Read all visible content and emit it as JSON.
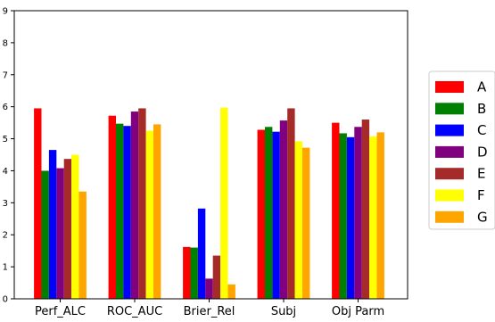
{
  "chart_data": {
    "type": "bar",
    "categories": [
      "Perf_ALC",
      "ROC_AUC",
      "Brier_Rel",
      "Subj",
      "Obj Parm"
    ],
    "series": [
      {
        "name": "A",
        "color": "#ff0000",
        "values": [
          5.95,
          5.72,
          1.62,
          5.28,
          5.5
        ]
      },
      {
        "name": "B",
        "color": "#008000",
        "values": [
          4.0,
          5.47,
          1.6,
          5.37,
          5.17
        ]
      },
      {
        "name": "C",
        "color": "#0000ff",
        "values": [
          4.65,
          5.4,
          2.82,
          5.22,
          5.05
        ]
      },
      {
        "name": "D",
        "color": "#800080",
        "values": [
          4.08,
          5.85,
          0.63,
          5.57,
          5.37
        ]
      },
      {
        "name": "E",
        "color": "#a52a2a",
        "values": [
          4.37,
          5.95,
          1.35,
          5.95,
          5.6
        ]
      },
      {
        "name": "F",
        "color": "#ffff00",
        "values": [
          4.5,
          5.25,
          5.97,
          4.92,
          5.07
        ]
      },
      {
        "name": "G",
        "color": "#ffa500",
        "values": [
          3.35,
          5.45,
          0.45,
          4.72,
          5.2
        ]
      }
    ],
    "yticks": [
      "0",
      "1",
      "2",
      "3",
      "4",
      "5",
      "6",
      "7",
      "8",
      "9"
    ],
    "ylim": [
      0,
      9
    ],
    "xlabel": "",
    "ylabel": "",
    "title": "",
    "grid": false,
    "legend_position": "right"
  }
}
